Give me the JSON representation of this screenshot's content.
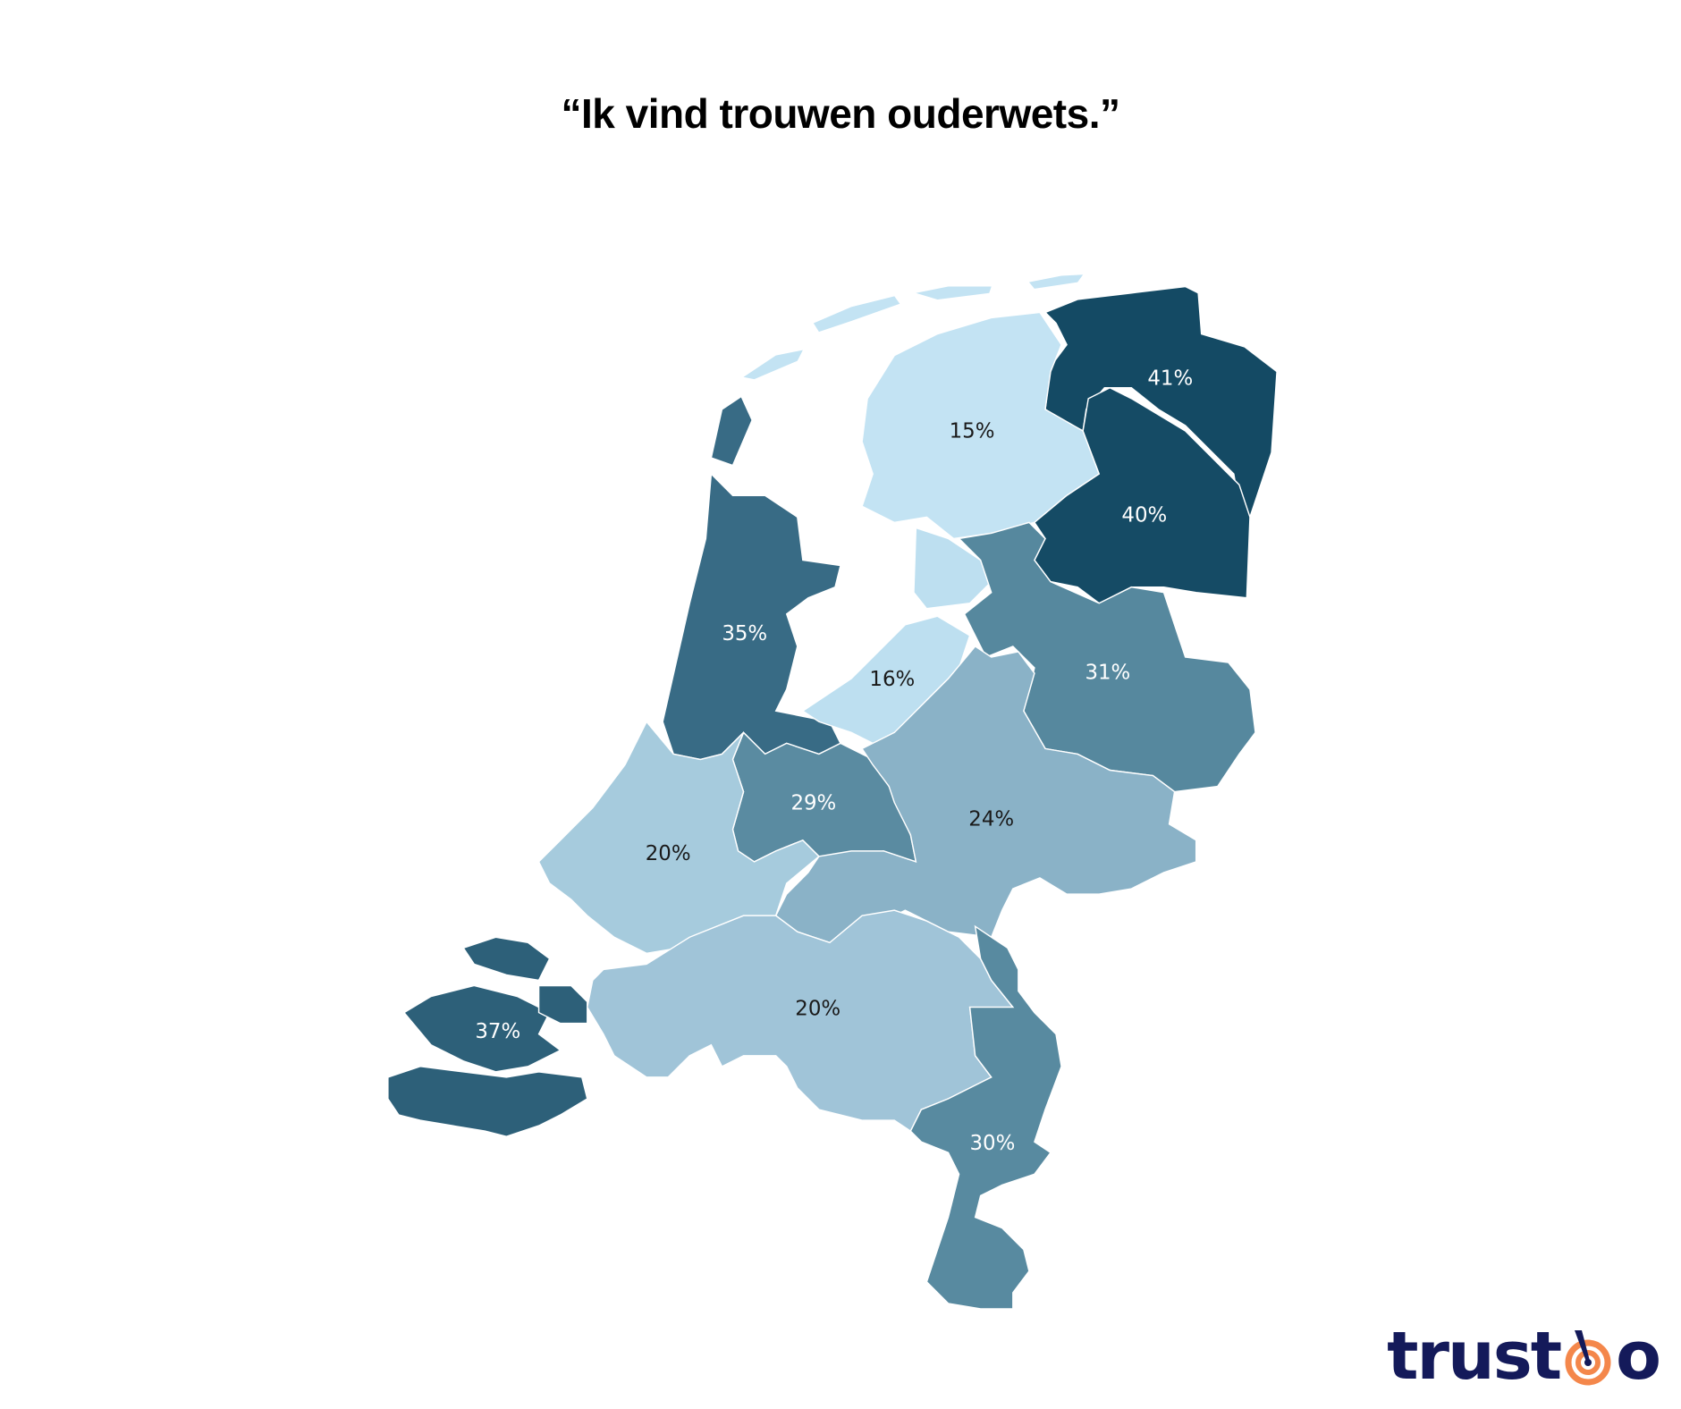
{
  "title": "“Ik vind trouwen ouderwets.”",
  "chart_data": {
    "type": "choropleth",
    "title": "“Ik vind trouwen ouderwets.”",
    "regions": [
      {
        "name": "Groningen",
        "value": 41,
        "label": "41%",
        "color": "#144a64"
      },
      {
        "name": "Friesland",
        "value": 15,
        "label": "15%",
        "color": "#c3e3f3"
      },
      {
        "name": "Drenthe",
        "value": 40,
        "label": "40%",
        "color": "#154b65"
      },
      {
        "name": "Noord-Holland",
        "value": 35,
        "label": "35%",
        "color": "#386b85"
      },
      {
        "name": "Flevoland",
        "value": 16,
        "label": "16%",
        "color": "#bddff0"
      },
      {
        "name": "Overijssel",
        "value": 31,
        "label": "31%",
        "color": "#56889e"
      },
      {
        "name": "Utrecht",
        "value": 29,
        "label": "29%",
        "color": "#5a8ba1"
      },
      {
        "name": "Gelderland",
        "value": 24,
        "label": "24%",
        "color": "#8ab2c7"
      },
      {
        "name": "Zuid-Holland",
        "value": 20,
        "label": "20%",
        "color": "#a6cbdd"
      },
      {
        "name": "Noord-Brabant",
        "value": 20,
        "label": "20%",
        "color": "#a0c4d8"
      },
      {
        "name": "Zeeland",
        "value": 37,
        "label": "37%",
        "color": "#2d6079"
      },
      {
        "name": "Limburg",
        "value": 30,
        "label": "30%",
        "color": "#588aa0"
      }
    ]
  },
  "logo": {
    "text": "trustoo",
    "left": "trust",
    "right": "o",
    "navy": "#141a5a",
    "orange": "#f4874b"
  }
}
